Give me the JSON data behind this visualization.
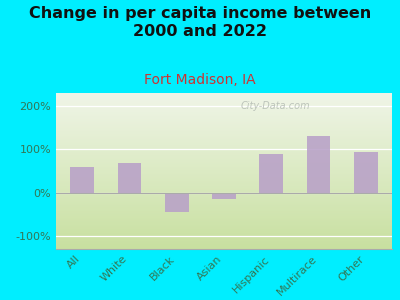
{
  "title": "Change in per capita income between\n2000 and 2022",
  "subtitle": "Fort Madison, IA",
  "categories": [
    "All",
    "White",
    "Black",
    "Asian",
    "Hispanic",
    "Multirace",
    "Other"
  ],
  "values": [
    60,
    68,
    -45,
    -15,
    90,
    130,
    95
  ],
  "bar_color": "#b8a0c8",
  "background_outer": "#00eeff",
  "gradient_top": "#f0f5e8",
  "gradient_bottom": "#c8e0a0",
  "ylim": [
    -130,
    230
  ],
  "yticks": [
    -100,
    0,
    100,
    200
  ],
  "ytick_labels": [
    "-100%",
    "0%",
    "100%",
    "200%"
  ],
  "title_fontsize": 11.5,
  "title_color": "#111111",
  "subtitle_fontsize": 10,
  "subtitle_color": "#cc3333",
  "tick_color": "#337755",
  "watermark": "City-Data.com",
  "watermark_color": "#b0b8b0",
  "grid_color": "#ffffff",
  "spine_color": "#aaaaaa"
}
